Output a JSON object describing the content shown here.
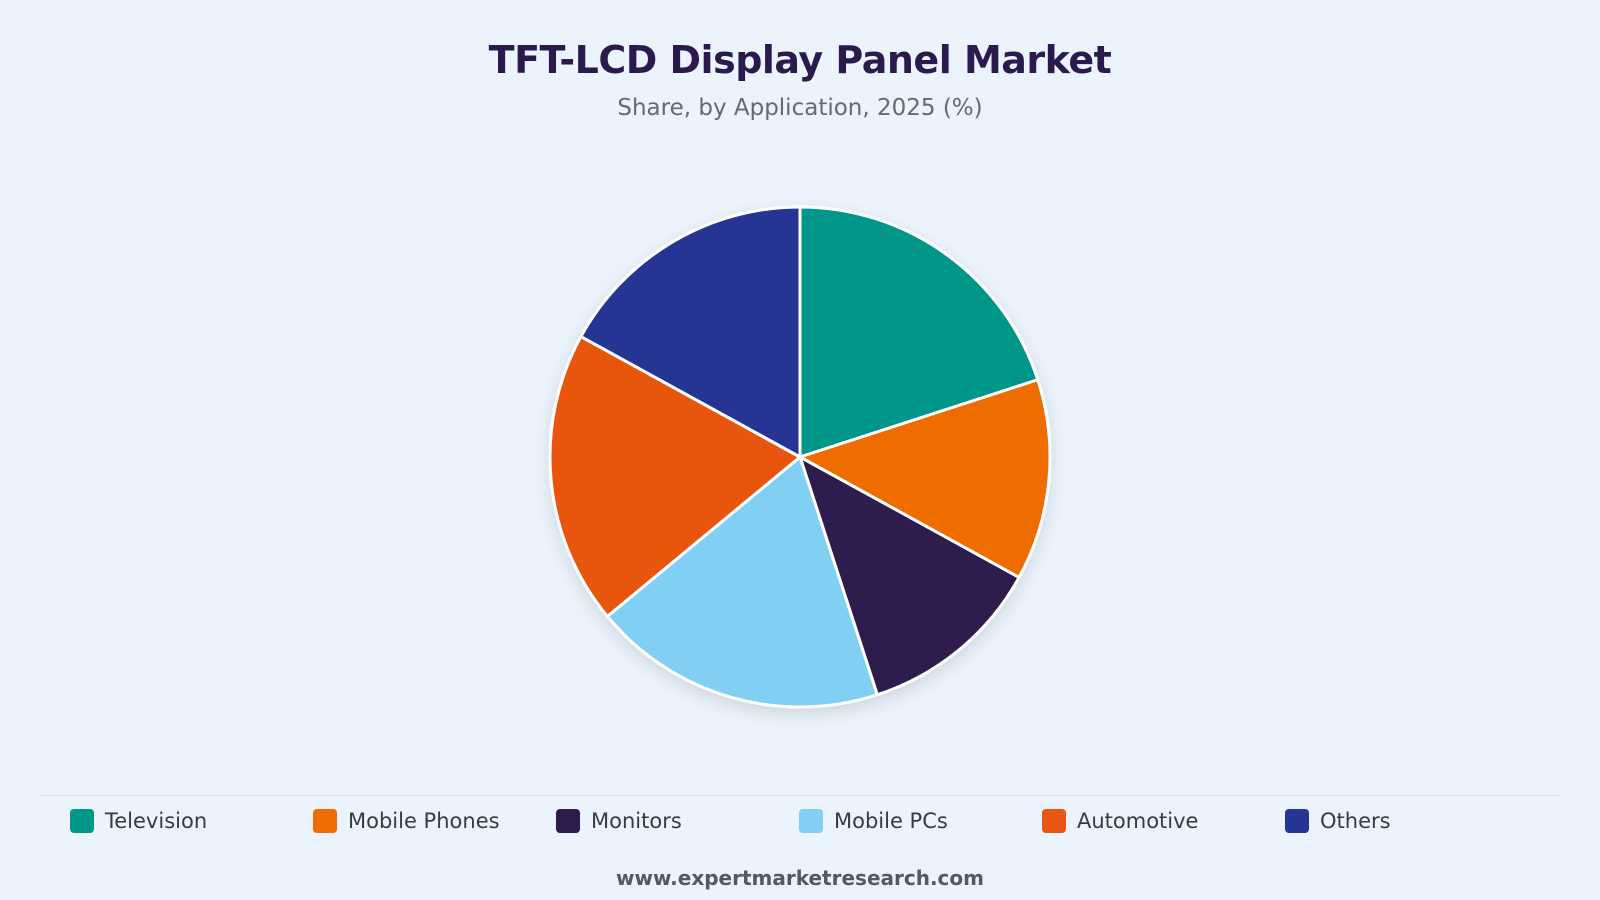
{
  "chart_data": {
    "type": "pie",
    "title": "TFT-LCD Display Panel Market",
    "subtitle": "Share, by Application, 2025 (%)",
    "categories": [
      "Television",
      "Mobile Phones",
      "Monitors",
      "Mobile PCs",
      "Automotive",
      "Others"
    ],
    "values": [
      20,
      13,
      12,
      19,
      19,
      17
    ],
    "colors": [
      "#00968a",
      "#ef6c00",
      "#2d1b4e",
      "#81cff2",
      "#e8560f",
      "#263593"
    ],
    "start_angle_deg": 0,
    "direction": "clockwise",
    "legend_position": "bottom"
  },
  "legend": {
    "items": [
      {
        "label": "Television",
        "color": "#00968a"
      },
      {
        "label": "Mobile Phones",
        "color": "#ef6c00"
      },
      {
        "label": "Monitors",
        "color": "#2d1b4e"
      },
      {
        "label": "Mobile PCs",
        "color": "#81cff2"
      },
      {
        "label": "Automotive",
        "color": "#e8560f"
      },
      {
        "label": "Others",
        "color": "#263593"
      }
    ]
  },
  "footer": {
    "source": "www.expertmarketresearch.com"
  }
}
